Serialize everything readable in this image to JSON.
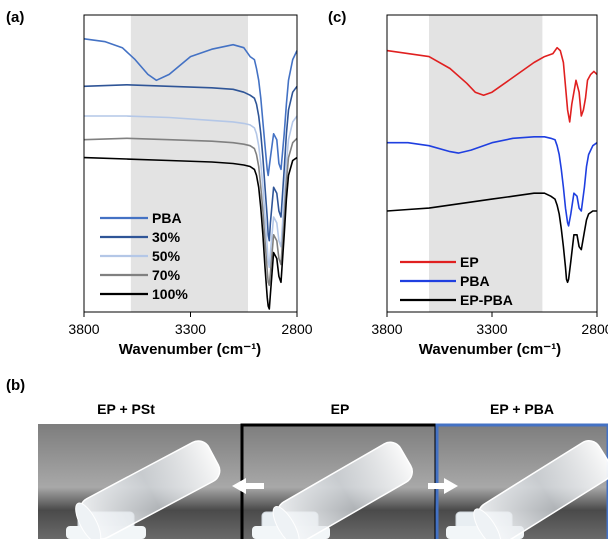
{
  "chart_data": [
    {
      "type": "line",
      "panel_label": "(a)",
      "xlabel": "Wavenumber (cm⁻¹)",
      "ylabel": "",
      "xlim": [
        3800,
        2800
      ],
      "xticks": [
        3800,
        3300,
        2800
      ],
      "shaded_region": [
        3580,
        3030
      ],
      "series": [
        {
          "name": "PBA",
          "color": "#4472C4",
          "x": [
            3800,
            3700,
            3620,
            3560,
            3500,
            3460,
            3400,
            3300,
            3200,
            3100,
            3050,
            3020,
            3000,
            2990,
            2980,
            2970,
            2960,
            2950,
            2940,
            2935,
            2925,
            2910,
            2895,
            2885,
            2875,
            2860,
            2850,
            2840,
            2820,
            2800
          ],
          "y": [
            0.92,
            0.91,
            0.89,
            0.85,
            0.8,
            0.78,
            0.8,
            0.86,
            0.885,
            0.9,
            0.89,
            0.86,
            0.85,
            0.82,
            0.78,
            0.72,
            0.64,
            0.56,
            0.48,
            0.46,
            0.52,
            0.6,
            0.58,
            0.5,
            0.48,
            0.6,
            0.7,
            0.78,
            0.85,
            0.88
          ]
        },
        {
          "name": "30%",
          "color": "#2F5597",
          "x": [
            3800,
            3600,
            3400,
            3200,
            3100,
            3050,
            3020,
            3000,
            2990,
            2980,
            2970,
            2960,
            2950,
            2940,
            2935,
            2930,
            2925,
            2910,
            2895,
            2885,
            2875,
            2860,
            2850,
            2840,
            2820,
            2800
          ],
          "y": [
            0.76,
            0.765,
            0.76,
            0.755,
            0.75,
            0.74,
            0.73,
            0.72,
            0.7,
            0.66,
            0.6,
            0.52,
            0.42,
            0.32,
            0.26,
            0.24,
            0.3,
            0.42,
            0.4,
            0.34,
            0.32,
            0.48,
            0.6,
            0.68,
            0.74,
            0.76
          ]
        },
        {
          "name": "50%",
          "color": "#B4C7E7",
          "x": [
            3800,
            3600,
            3400,
            3200,
            3100,
            3050,
            3020,
            3000,
            2990,
            2980,
            2970,
            2960,
            2950,
            2940,
            2935,
            2930,
            2925,
            2910,
            2895,
            2885,
            2875,
            2860,
            2850,
            2840,
            2820,
            2800
          ],
          "y": [
            0.66,
            0.66,
            0.655,
            0.645,
            0.64,
            0.635,
            0.63,
            0.62,
            0.6,
            0.56,
            0.5,
            0.42,
            0.32,
            0.22,
            0.17,
            0.15,
            0.2,
            0.32,
            0.3,
            0.24,
            0.22,
            0.38,
            0.5,
            0.58,
            0.64,
            0.66
          ]
        },
        {
          "name": "70%",
          "color": "#808080",
          "x": [
            3800,
            3600,
            3400,
            3200,
            3100,
            3050,
            3020,
            3000,
            2990,
            2980,
            2970,
            2960,
            2950,
            2940,
            2935,
            2930,
            2925,
            2910,
            2895,
            2885,
            2875,
            2860,
            2850,
            2840,
            2820,
            2800
          ],
          "y": [
            0.58,
            0.585,
            0.58,
            0.575,
            0.57,
            0.565,
            0.56,
            0.55,
            0.53,
            0.49,
            0.42,
            0.34,
            0.24,
            0.14,
            0.1,
            0.09,
            0.13,
            0.26,
            0.24,
            0.18,
            0.16,
            0.32,
            0.44,
            0.52,
            0.57,
            0.585
          ]
        },
        {
          "name": "100%",
          "color": "#000000",
          "x": [
            3800,
            3600,
            3400,
            3200,
            3100,
            3050,
            3020,
            3000,
            2990,
            2980,
            2970,
            2960,
            2950,
            2940,
            2935,
            2930,
            2925,
            2910,
            2895,
            2885,
            2875,
            2860,
            2850,
            2840,
            2820,
            2800
          ],
          "y": [
            0.52,
            0.515,
            0.51,
            0.505,
            0.5,
            0.495,
            0.49,
            0.48,
            0.46,
            0.42,
            0.35,
            0.26,
            0.15,
            0.05,
            0.02,
            0.01,
            0.06,
            0.2,
            0.18,
            0.12,
            0.1,
            0.26,
            0.38,
            0.46,
            0.51,
            0.52
          ]
        }
      ],
      "legend": {
        "placement": "bottom-left",
        "entries": [
          "PBA",
          "30%",
          "50%",
          "70%",
          "100%"
        ]
      },
      "grid": false
    },
    {
      "type": "line",
      "panel_label": "(c)",
      "xlabel": "Wavenumber (cm⁻¹)",
      "ylabel": "",
      "xlim": [
        3800,
        2800
      ],
      "xticks": [
        3800,
        3300,
        2800
      ],
      "shaded_region": [
        3600,
        3060
      ],
      "series": [
        {
          "name": "EP",
          "color": "#E02020",
          "x": [
            3800,
            3700,
            3600,
            3500,
            3420,
            3380,
            3340,
            3300,
            3200,
            3100,
            3050,
            3010,
            2990,
            2975,
            2960,
            2950,
            2940,
            2930,
            2920,
            2900,
            2885,
            2875,
            2865,
            2855,
            2845,
            2830,
            2815,
            2800
          ],
          "y": [
            0.88,
            0.87,
            0.86,
            0.82,
            0.77,
            0.74,
            0.73,
            0.74,
            0.79,
            0.84,
            0.86,
            0.87,
            0.89,
            0.88,
            0.84,
            0.76,
            0.68,
            0.64,
            0.7,
            0.78,
            0.74,
            0.66,
            0.68,
            0.72,
            0.78,
            0.8,
            0.81,
            0.8
          ]
        },
        {
          "name": "PBA",
          "color": "#1F3FE0",
          "x": [
            3800,
            3700,
            3600,
            3500,
            3460,
            3400,
            3300,
            3200,
            3100,
            3050,
            3020,
            3000,
            2990,
            2980,
            2970,
            2960,
            2950,
            2940,
            2935,
            2925,
            2910,
            2895,
            2885,
            2875,
            2860,
            2850,
            2840,
            2820,
            2800
          ],
          "y": [
            0.57,
            0.57,
            0.56,
            0.54,
            0.535,
            0.545,
            0.57,
            0.585,
            0.59,
            0.59,
            0.585,
            0.58,
            0.56,
            0.53,
            0.48,
            0.42,
            0.35,
            0.3,
            0.29,
            0.33,
            0.4,
            0.39,
            0.35,
            0.34,
            0.42,
            0.49,
            0.53,
            0.56,
            0.57
          ]
        },
        {
          "name": "EP-PBA",
          "color": "#000000",
          "x": [
            3800,
            3700,
            3600,
            3500,
            3400,
            3300,
            3200,
            3100,
            3050,
            3020,
            3000,
            2990,
            2980,
            2970,
            2960,
            2950,
            2945,
            2940,
            2935,
            2925,
            2910,
            2895,
            2885,
            2875,
            2860,
            2850,
            2840,
            2820,
            2800
          ],
          "y": [
            0.34,
            0.345,
            0.35,
            0.36,
            0.37,
            0.38,
            0.39,
            0.4,
            0.4,
            0.39,
            0.38,
            0.36,
            0.33,
            0.28,
            0.22,
            0.15,
            0.11,
            0.1,
            0.11,
            0.17,
            0.26,
            0.26,
            0.22,
            0.21,
            0.27,
            0.31,
            0.33,
            0.34,
            0.34
          ]
        }
      ],
      "legend": {
        "placement": "bottom-right",
        "entries": [
          "EP",
          "PBA",
          "EP-PBA"
        ]
      },
      "grid": false
    }
  ],
  "photo_panel": {
    "panel_label": "(b)",
    "titles": [
      "EP + PSt",
      "EP",
      "EP + PBA"
    ]
  },
  "colors": {
    "shade": "#E3E3E3",
    "photo_background": "#8E8E8E",
    "center_frame": "#000000",
    "right_frame": "#4472C4",
    "arrow": "#FFFFFF"
  }
}
